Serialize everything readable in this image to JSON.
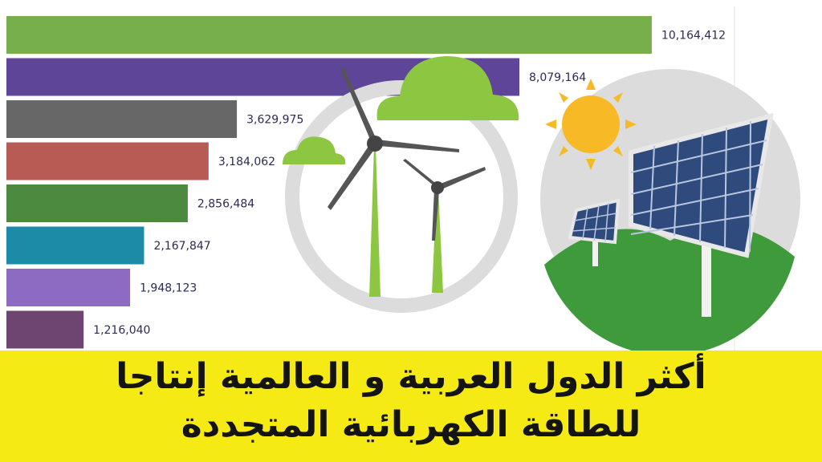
{
  "chart_data": {
    "type": "bar",
    "orientation": "horizontal",
    "values": [
      10164412,
      8079164,
      3629975,
      3184062,
      2856484,
      2167847,
      1948123,
      1216040
    ],
    "value_labels": [
      "10,164,412",
      "8,079,164",
      "3,629,975",
      "3,184,062",
      "2,856,484",
      "2,167,847",
      "1,948,123",
      "1,216,040"
    ],
    "colors": [
      "#77b04a",
      "#5f4597",
      "#676767",
      "#b85b55",
      "#4c8a3f",
      "#1b8ba8",
      "#8e6bc2",
      "#6e4470"
    ],
    "xlim": [
      0,
      11000000
    ],
    "grid": false
  },
  "banner": {
    "line1": "أكثر الدول العربية و العالمية إنتاجا",
    "line2": "للطاقة الكهربائية المتجددة",
    "background": "#f5ea14"
  }
}
